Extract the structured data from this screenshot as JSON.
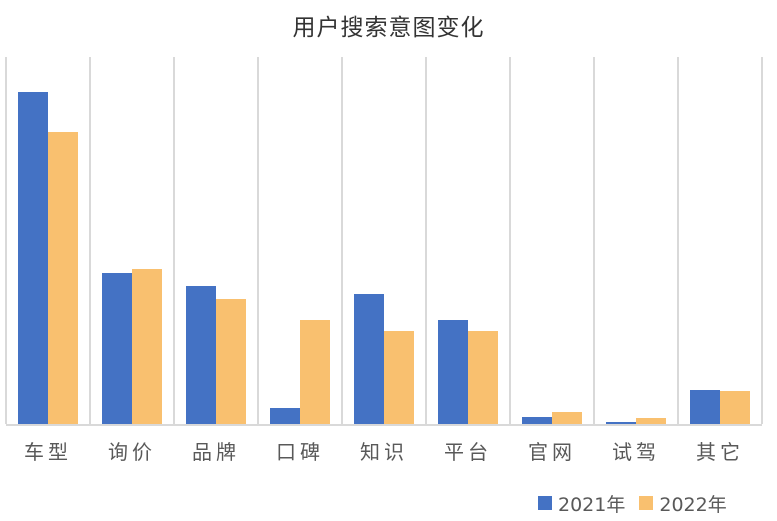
{
  "chart_data": {
    "type": "bar",
    "title": "用户搜索意图变化",
    "xlabel": "",
    "ylabel": "",
    "categories": [
      "车型",
      "询价",
      "品牌",
      "口碑",
      "知识",
      "平台",
      "官网",
      "试驾",
      "其它"
    ],
    "series": [
      {
        "name": "2021年",
        "color": "#4472C4",
        "values": [
          332,
          151,
          138,
          16,
          130,
          104,
          7,
          2,
          34
        ]
      },
      {
        "name": "2022年",
        "color": "#F9C06F",
        "values": [
          292,
          155,
          125,
          104,
          93,
          93,
          12,
          6,
          33
        ]
      }
    ],
    "ylim": [
      0,
      367
    ],
    "y_axis_visible": false,
    "grid": {
      "vertical": true,
      "horizontal": false
    },
    "legend_position": "bottom-right",
    "value_note": "relative bar heights (no y-axis ticks shown)"
  },
  "colors": {
    "grid": "#d9d9d9",
    "text": "#595959",
    "title": "#333333"
  }
}
